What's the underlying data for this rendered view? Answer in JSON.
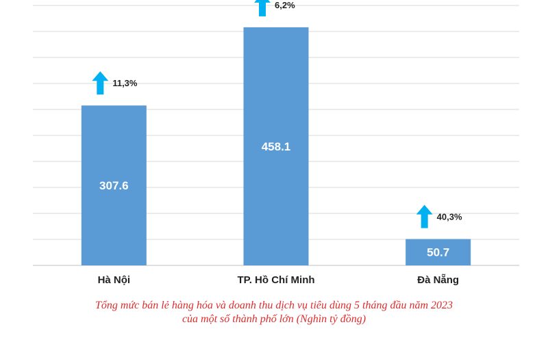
{
  "chart_data": {
    "type": "bar",
    "categories": [
      "Hà Nội",
      "TP. Hồ Chí Minh",
      "Đà Nẵng"
    ],
    "values": [
      307.6,
      458.1,
      50.7
    ],
    "value_labels": [
      "307.6",
      "458.1",
      "50.7"
    ],
    "growth_labels": [
      "11,3%",
      "6,2%",
      "40,3%"
    ],
    "ylim": [
      0,
      500
    ],
    "grid": true,
    "legend": "none",
    "bar_color": "#5b9bd5",
    "arrow_color": "#00b0f0",
    "caption": [
      "Tổng mức bán lẻ hàng hóa và doanh thu dịch vụ tiêu dùng 5 tháng đầu năm 2023",
      "của một số thành phố lớn (Nghìn tỷ đồng)"
    ]
  }
}
